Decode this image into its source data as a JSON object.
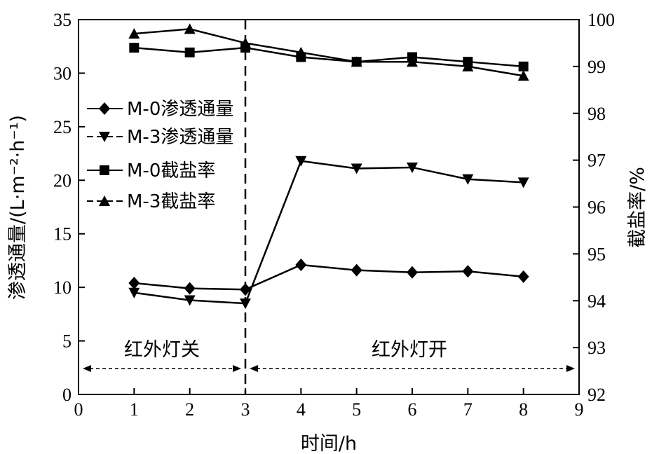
{
  "chart_data": {
    "type": "line",
    "xlabel": "时间/h",
    "ylabel_left": "渗透通量/(L·m⁻²·h⁻¹)",
    "ylabel_right": "截盐率/%",
    "xlim": [
      0,
      9
    ],
    "ylim_left": [
      0,
      35
    ],
    "ylim_right": [
      92,
      100
    ],
    "x_ticks": [
      0,
      1,
      2,
      3,
      4,
      5,
      6,
      7,
      8,
      9
    ],
    "y_left_ticks": [
      0,
      5,
      10,
      15,
      20,
      25,
      30,
      35
    ],
    "y_right_ticks": [
      92,
      93,
      94,
      95,
      96,
      97,
      98,
      99,
      100
    ],
    "x_tick_labels": [
      "0",
      "1",
      "2",
      "3",
      "4",
      "5",
      "6",
      "7",
      "8",
      "9"
    ],
    "y_left_tick_labels": [
      "0",
      "5",
      "10",
      "15",
      "20",
      "25",
      "30",
      "35"
    ],
    "y_right_tick_labels": [
      "92",
      "93",
      "94",
      "95",
      "96",
      "97",
      "98",
      "99",
      "100"
    ],
    "grid": false,
    "legend_position": "left",
    "series": [
      {
        "name": "M-0渗透通量",
        "axis": "left",
        "marker": "diamond",
        "x": [
          1,
          2,
          3,
          4,
          5,
          6,
          7,
          8
        ],
        "values": [
          10.4,
          9.9,
          9.8,
          12.1,
          11.6,
          11.4,
          11.5,
          11.0
        ]
      },
      {
        "name": "M-3渗透通量",
        "axis": "left",
        "marker": "triangle-down",
        "x": [
          1,
          2,
          3,
          4,
          5,
          6,
          7,
          8
        ],
        "values": [
          9.5,
          8.8,
          8.5,
          21.8,
          21.1,
          21.2,
          20.1,
          19.8
        ]
      },
      {
        "name": "M-0截盐率",
        "axis": "right",
        "marker": "square",
        "x": [
          1,
          2,
          3,
          4,
          5,
          6,
          7,
          8
        ],
        "values": [
          99.4,
          99.3,
          99.4,
          99.2,
          99.1,
          99.2,
          99.1,
          99.0
        ]
      },
      {
        "name": "M-3截盐率",
        "axis": "right",
        "marker": "triangle-up",
        "x": [
          1,
          2,
          3,
          4,
          5,
          6,
          7,
          8
        ],
        "values": [
          99.7,
          99.8,
          99.5,
          99.3,
          99.1,
          99.1,
          99.0,
          98.8
        ]
      }
    ],
    "vertical_line": {
      "x": 3,
      "style": "dashed"
    },
    "annotations": [
      {
        "text": "红外灯关",
        "x_range": [
          0,
          3
        ]
      },
      {
        "text": "红外灯开",
        "x_range": [
          3,
          9
        ]
      }
    ]
  }
}
